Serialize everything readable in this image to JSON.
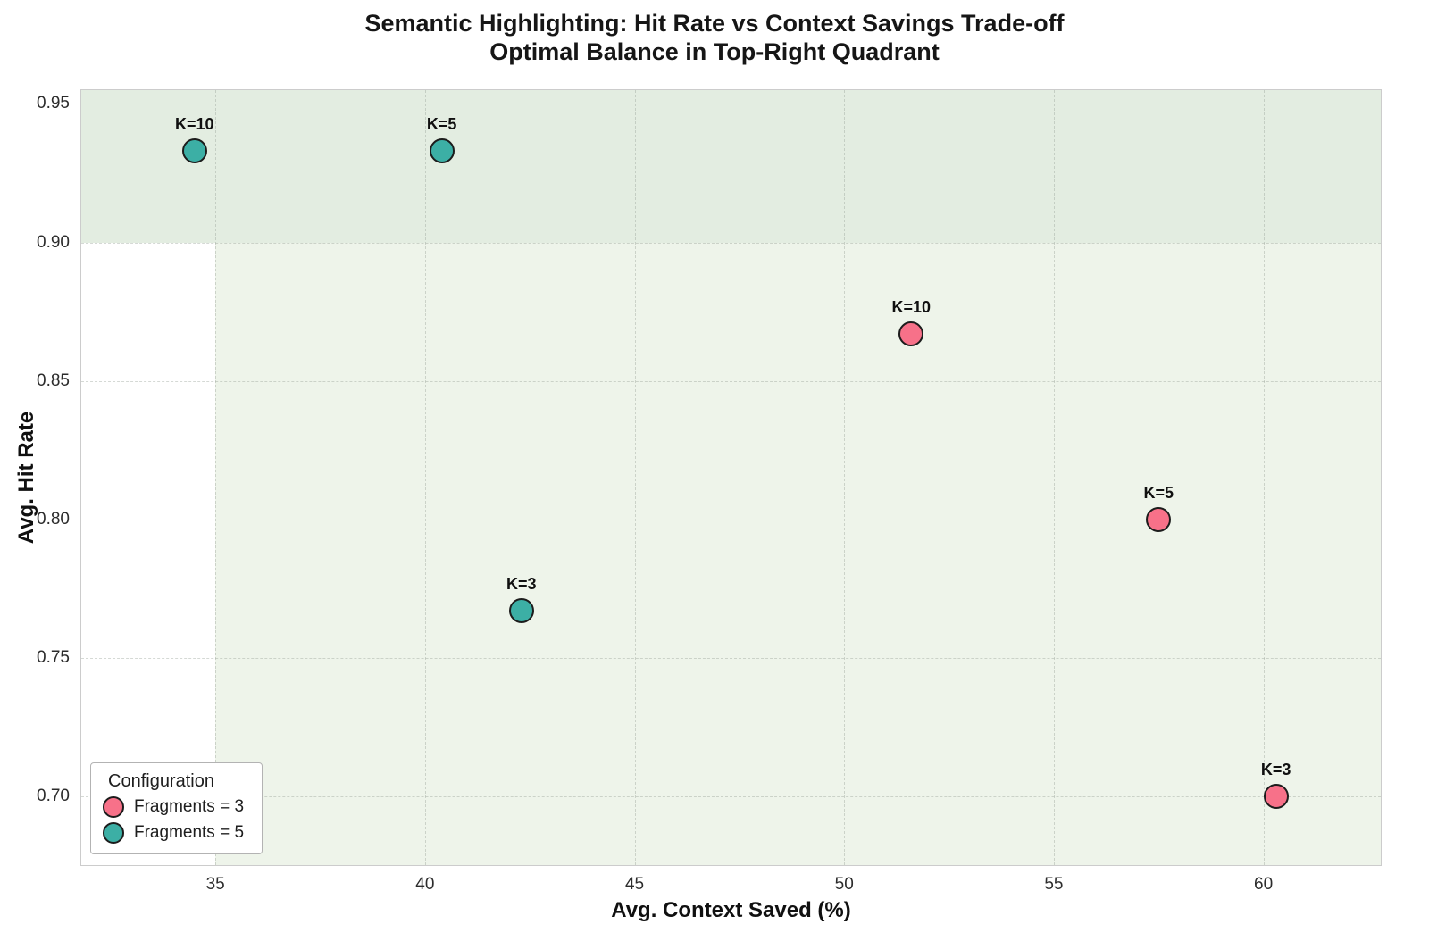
{
  "title": {
    "line1": "Semantic Highlighting: Hit Rate vs Context Savings Trade-off",
    "line2": "Optimal Balance in Top-Right Quadrant"
  },
  "chart_data": {
    "type": "scatter",
    "xlabel": "Avg. Context Saved (%)",
    "ylabel": "Avg. Hit Rate",
    "xlim": [
      31.8,
      62.8
    ],
    "ylim": [
      0.675,
      0.955
    ],
    "xticks": [
      35,
      40,
      45,
      50,
      55,
      60
    ],
    "xtick_labels": [
      "35",
      "40",
      "45",
      "50",
      "55",
      "60"
    ],
    "yticks": [
      0.7,
      0.75,
      0.8,
      0.85,
      0.9,
      0.95
    ],
    "ytick_labels": [
      "0.70",
      "0.75",
      "0.80",
      "0.85",
      "0.90",
      "0.95"
    ],
    "grid": true,
    "marker_edge_color": "#1c1c1c",
    "legend": {
      "title": "Configuration",
      "position": "lower-left"
    },
    "regions": [
      {
        "x0": 31.8,
        "x1": 62.8,
        "y0": 0.9,
        "y1": 0.955,
        "color": "#e3ede1"
      },
      {
        "x0": 35.0,
        "x1": 62.8,
        "y0": 0.675,
        "y1": 0.9,
        "color": "#eef4ea"
      }
    ],
    "series": [
      {
        "name": "Fragments = 3",
        "color": "#f77189",
        "points": [
          {
            "x": 51.6,
            "y": 0.867,
            "label": "K=10"
          },
          {
            "x": 57.5,
            "y": 0.8,
            "label": "K=5"
          },
          {
            "x": 60.3,
            "y": 0.7,
            "label": "K=3"
          }
        ]
      },
      {
        "name": "Fragments = 5",
        "color": "#3cafa5",
        "points": [
          {
            "x": 34.5,
            "y": 0.933,
            "label": "K=10"
          },
          {
            "x": 40.4,
            "y": 0.933,
            "label": "K=5"
          },
          {
            "x": 42.3,
            "y": 0.767,
            "label": "K=3"
          }
        ]
      }
    ]
  }
}
